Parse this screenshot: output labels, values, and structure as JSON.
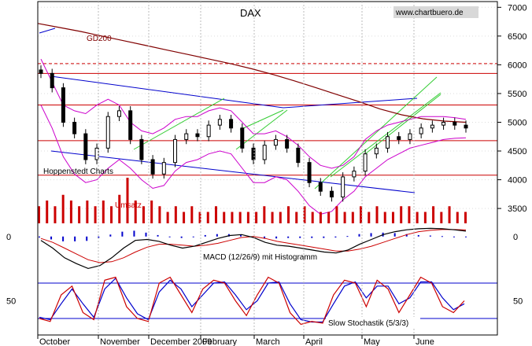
{
  "chart_data": {
    "type": "line",
    "title": "DAX",
    "watermark": "www.chartbuero.de",
    "annotation": "Hoppenstedt Charts",
    "price": {
      "y_ticks": [
        3500,
        4000,
        4500,
        5000,
        5500,
        6000,
        6500,
        7000
      ],
      "ylim": [
        3050,
        7100
      ],
      "horizontal_levels": [
        {
          "value": 4080,
          "style": "solid"
        },
        {
          "value": 4680,
          "style": "solid"
        },
        {
          "value": 5300,
          "style": "solid"
        },
        {
          "value": 5850,
          "style": "solid"
        },
        {
          "value": 6020,
          "style": "dashed"
        }
      ],
      "series": [
        {
          "name": "GD200",
          "color": "#800000",
          "values": [
            6720,
            6650,
            6580,
            6500,
            6420,
            6340,
            6260,
            6180,
            6100,
            6020,
            5930,
            5830,
            5720,
            5600,
            5480,
            5360,
            5230,
            5130,
            5060,
            5020,
            5000
          ]
        }
      ],
      "close": [
        5850,
        5600,
        5000,
        4800,
        4350,
        4550,
        5100,
        5200,
        4700,
        4350,
        4100,
        4300,
        4700,
        4800,
        4750,
        4950,
        5050,
        4900,
        4550,
        4350,
        4600,
        4700,
        4550,
        4300,
        3950,
        3800,
        3700,
        4050,
        4150,
        4450,
        4550,
        4750,
        4700,
        4800,
        4900,
        4950,
        5000,
        4950,
        4900
      ],
      "bollinger_upper": [
        6100,
        5700,
        5300,
        5200,
        5150,
        5300,
        5400,
        5300,
        5000,
        4850,
        4800,
        4900,
        5050,
        5100,
        5100,
        5200,
        5250,
        5200,
        5000,
        4800,
        4800,
        4850,
        4750,
        4600,
        4400,
        4250,
        4200,
        4250,
        4400,
        4700,
        4850,
        4950,
        5000,
        5050,
        5100,
        5100,
        5100,
        5080,
        5050
      ],
      "bollinger_lower": [
        5300,
        4900,
        4400,
        4100,
        3950,
        4000,
        4200,
        4350,
        4200,
        4000,
        3850,
        3900,
        4150,
        4300,
        4350,
        4450,
        4500,
        4450,
        4200,
        3950,
        3950,
        4050,
        4000,
        3800,
        3550,
        3400,
        3450,
        3650,
        3800,
        4050,
        4200,
        4350,
        4450,
        4550,
        4600,
        4650,
        4700,
        4720,
        4730
      ]
    },
    "volume": {
      "label": "Umsatz",
      "values": [
        3,
        4,
        3,
        5,
        4,
        3,
        4,
        3,
        4,
        3,
        5,
        8,
        4,
        3,
        4,
        3,
        2,
        3,
        2,
        3,
        2,
        2,
        3,
        2,
        2,
        2,
        2,
        2,
        3,
        2,
        2,
        3,
        2,
        3,
        2,
        2,
        2,
        3,
        2,
        2,
        3,
        2,
        3,
        2,
        2,
        3,
        3,
        2,
        2,
        3,
        2,
        3,
        2,
        2
      ]
    },
    "macd": {
      "label": "MACD (12/26/9) mit Histogramm",
      "y_ticks": [
        0
      ],
      "ylim": [
        -200,
        60
      ],
      "macd_line": [
        -20,
        -60,
        -110,
        -140,
        -165,
        -150,
        -110,
        -60,
        -20,
        -15,
        -25,
        -45,
        -60,
        -50,
        -30,
        -10,
        5,
        10,
        -5,
        -30,
        -45,
        -50,
        -60,
        -70,
        -80,
        -85,
        -70,
        -40,
        -15,
        10,
        25,
        35,
        40,
        42,
        40,
        35,
        28
      ],
      "signal_line": [
        -10,
        -30,
        -60,
        -90,
        -120,
        -135,
        -130,
        -110,
        -80,
        -55,
        -40,
        -40,
        -45,
        -50,
        -45,
        -35,
        -20,
        -5,
        0,
        -10,
        -25,
        -35,
        -45,
        -55,
        -65,
        -75,
        -75,
        -65,
        -50,
        -30,
        -10,
        10,
        25,
        32,
        36,
        36,
        34
      ]
    },
    "stochastic": {
      "label": "Slow Stochastik (5/3/3)",
      "y_ticks": [
        50
      ],
      "ylim": [
        0,
        100
      ],
      "reference_levels": [
        20,
        80
      ],
      "k": [
        20,
        15,
        60,
        75,
        30,
        18,
        85,
        90,
        40,
        20,
        15,
        80,
        90,
        60,
        30,
        70,
        85,
        80,
        50,
        25,
        60,
        90,
        80,
        30,
        10,
        15,
        12,
        60,
        85,
        80,
        40,
        85,
        70,
        30,
        60,
        90,
        80,
        40,
        30,
        50
      ],
      "d": [
        22,
        18,
        45,
        70,
        45,
        22,
        70,
        88,
        55,
        28,
        18,
        65,
        85,
        70,
        40,
        60,
        80,
        82,
        60,
        35,
        50,
        80,
        82,
        45,
        18,
        14,
        14,
        45,
        75,
        82,
        55,
        75,
        75,
        45,
        55,
        82,
        82,
        55,
        35,
        45
      ]
    },
    "x_axis": {
      "months": [
        "October",
        "November",
        "December 2009",
        "February",
        "March",
        "April",
        "May",
        "June"
      ]
    }
  }
}
